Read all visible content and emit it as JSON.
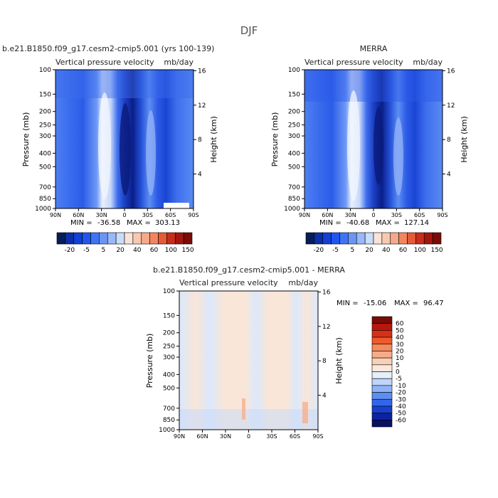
{
  "figure": {
    "title": "DJF"
  },
  "chart_data": [
    {
      "type": "heatmap",
      "panel": "model",
      "title_left": "b.e21.B1850.f09_g17.cesm2-cmip5.001 (yrs 100-139)",
      "subtitle_left": "Vertical pressure velocity",
      "subtitle_right": "mb/day",
      "xlabel": "",
      "ylabel": "Pressure (mb)",
      "ylabel_right": "Height (km)",
      "x_ticks": [
        "90N",
        "60N",
        "30N",
        "0",
        "30S",
        "60S",
        "90S"
      ],
      "y_ticks": [
        "100",
        "150",
        "200",
        "250",
        "300",
        "400",
        "500",
        "700",
        "850",
        "1000"
      ],
      "y_ticks_right": [
        "16",
        "12",
        "8",
        "4"
      ],
      "stats": {
        "min_label": "MIN =",
        "min": "-36.58",
        "max_label": "MAX =",
        "max": "303.13"
      },
      "colorbar": {
        "orientation": "horizontal",
        "tick_labels": [
          "-20",
          "-5",
          "5",
          "20",
          "40",
          "60",
          "100",
          "150"
        ],
        "colors": [
          "#081d58",
          "#0a2fa8",
          "#1240d8",
          "#2056f0",
          "#3f74f4",
          "#6a95f6",
          "#9ab8f8",
          "#c8dcfb",
          "#f8e3d6",
          "#f8c9b0",
          "#f6a98a",
          "#f2865f",
          "#e55a38",
          "#c92d1a",
          "#a3160e",
          "#7a0b05"
        ]
      }
    },
    {
      "type": "heatmap",
      "panel": "obs",
      "title_left": "MERRA",
      "subtitle_left": "Vertical pressure velocity",
      "subtitle_right": "mb/day",
      "xlabel": "",
      "ylabel": "Pressure (mb)",
      "ylabel_right": "Height (km)",
      "x_ticks": [
        "90N",
        "60N",
        "30N",
        "0",
        "30S",
        "60S",
        "90S"
      ],
      "y_ticks": [
        "100",
        "150",
        "200",
        "250",
        "300",
        "400",
        "500",
        "700",
        "850",
        "1000"
      ],
      "y_ticks_right": [
        "16",
        "12",
        "8",
        "4"
      ],
      "stats": {
        "min_label": "MIN =",
        "min": "-40.68",
        "max_label": "MAX =",
        "max": "127.14"
      },
      "colorbar": {
        "orientation": "horizontal",
        "tick_labels": [
          "-20",
          "-5",
          "5",
          "20",
          "40",
          "60",
          "100",
          "150"
        ],
        "colors": [
          "#081d58",
          "#0a2fa8",
          "#1240d8",
          "#2056f0",
          "#3f74f4",
          "#6a95f6",
          "#9ab8f8",
          "#c8dcfb",
          "#f8e3d6",
          "#f8c9b0",
          "#f6a98a",
          "#f2865f",
          "#e55a38",
          "#c92d1a",
          "#a3160e",
          "#7a0b05"
        ]
      }
    },
    {
      "type": "heatmap",
      "panel": "diff",
      "title_left": "b.e21.B1850.f09_g17.cesm2-cmip5.001 - MERRA",
      "subtitle_left": "Vertical pressure velocity",
      "subtitle_right": "mb/day",
      "xlabel": "",
      "ylabel": "Pressure (mb)",
      "ylabel_right": "Height (km)",
      "x_ticks": [
        "90N",
        "60N",
        "30N",
        "0",
        "30S",
        "60S",
        "90S"
      ],
      "y_ticks": [
        "100",
        "150",
        "200",
        "250",
        "300",
        "400",
        "500",
        "700",
        "850",
        "1000"
      ],
      "y_ticks_right": [
        "16",
        "12",
        "8",
        "4"
      ],
      "stats": {
        "min_label": "MIN =",
        "min": "-15.06",
        "max_label": "MAX =",
        "max": "96.47"
      },
      "colorbar": {
        "orientation": "vertical",
        "tick_labels": [
          "60",
          "50",
          "40",
          "30",
          "20",
          "10",
          "5",
          "0",
          "-5",
          "-10",
          "-20",
          "-30",
          "-40",
          "-50",
          "-60"
        ],
        "colors": [
          "#7a0b05",
          "#b8180c",
          "#d7301a",
          "#ef5a2b",
          "#f58a5c",
          "#f7ac88",
          "#f9cfb5",
          "#fbe8dc",
          "#e6effc",
          "#bfd5fa",
          "#8fb3f6",
          "#5d8ef2",
          "#3266ea",
          "#1840cc",
          "#0d22a0",
          "#081260"
        ]
      }
    }
  ]
}
